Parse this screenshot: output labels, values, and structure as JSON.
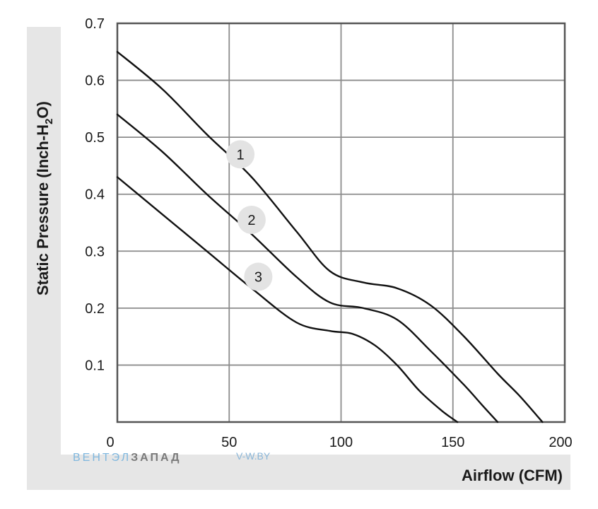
{
  "chart_data": {
    "type": "line",
    "xlabel": "Airflow (CFM)",
    "ylabel_main": "Static Pressure (Inch-H",
    "ylabel_sub": "2",
    "ylabel_end": "O)",
    "xlim": [
      0,
      200
    ],
    "ylim": [
      0,
      0.7
    ],
    "x_ticks": [
      0,
      50,
      100,
      150,
      200
    ],
    "x_tick_labels": [
      "0",
      "50",
      "100",
      "150",
      "200"
    ],
    "y_ticks": [
      0.1,
      0.2,
      0.3,
      0.4,
      0.5,
      0.6,
      0.7
    ],
    "y_tick_labels": [
      "0.1",
      "0.2",
      "0.3",
      "0.4",
      "0.5",
      "0.6",
      "0.7"
    ],
    "grid": true,
    "series": [
      {
        "name": "1",
        "label_at": [
          55,
          0.47
        ],
        "points": [
          [
            0,
            0.65
          ],
          [
            20,
            0.585
          ],
          [
            40,
            0.505
          ],
          [
            60,
            0.43
          ],
          [
            80,
            0.335
          ],
          [
            95,
            0.265
          ],
          [
            110,
            0.245
          ],
          [
            125,
            0.235
          ],
          [
            140,
            0.205
          ],
          [
            155,
            0.15
          ],
          [
            170,
            0.085
          ],
          [
            180,
            0.045
          ],
          [
            190,
            0.0
          ]
        ]
      },
      {
        "name": "2",
        "label_at": [
          60,
          0.355
        ],
        "points": [
          [
            0,
            0.54
          ],
          [
            20,
            0.475
          ],
          [
            40,
            0.4
          ],
          [
            60,
            0.33
          ],
          [
            80,
            0.255
          ],
          [
            95,
            0.21
          ],
          [
            110,
            0.2
          ],
          [
            125,
            0.18
          ],
          [
            140,
            0.125
          ],
          [
            155,
            0.065
          ],
          [
            163,
            0.03
          ],
          [
            170,
            0.0
          ]
        ]
      },
      {
        "name": "3",
        "label_at": [
          63,
          0.255
        ],
        "points": [
          [
            0,
            0.43
          ],
          [
            20,
            0.365
          ],
          [
            40,
            0.3
          ],
          [
            60,
            0.235
          ],
          [
            80,
            0.175
          ],
          [
            95,
            0.16
          ],
          [
            105,
            0.155
          ],
          [
            115,
            0.135
          ],
          [
            125,
            0.1
          ],
          [
            135,
            0.055
          ],
          [
            145,
            0.02
          ],
          [
            152,
            0.0
          ]
        ]
      }
    ]
  },
  "watermark": {
    "brand_blue": "ВЕНТЭЛ",
    "brand_gray": "ЗАПАД",
    "url": "V-W.BY"
  },
  "colors": {
    "band": "#e6e6e6",
    "grid": "#8c8c8c",
    "frame": "#555555",
    "line": "#111111",
    "marker": "#e3e3e3"
  }
}
